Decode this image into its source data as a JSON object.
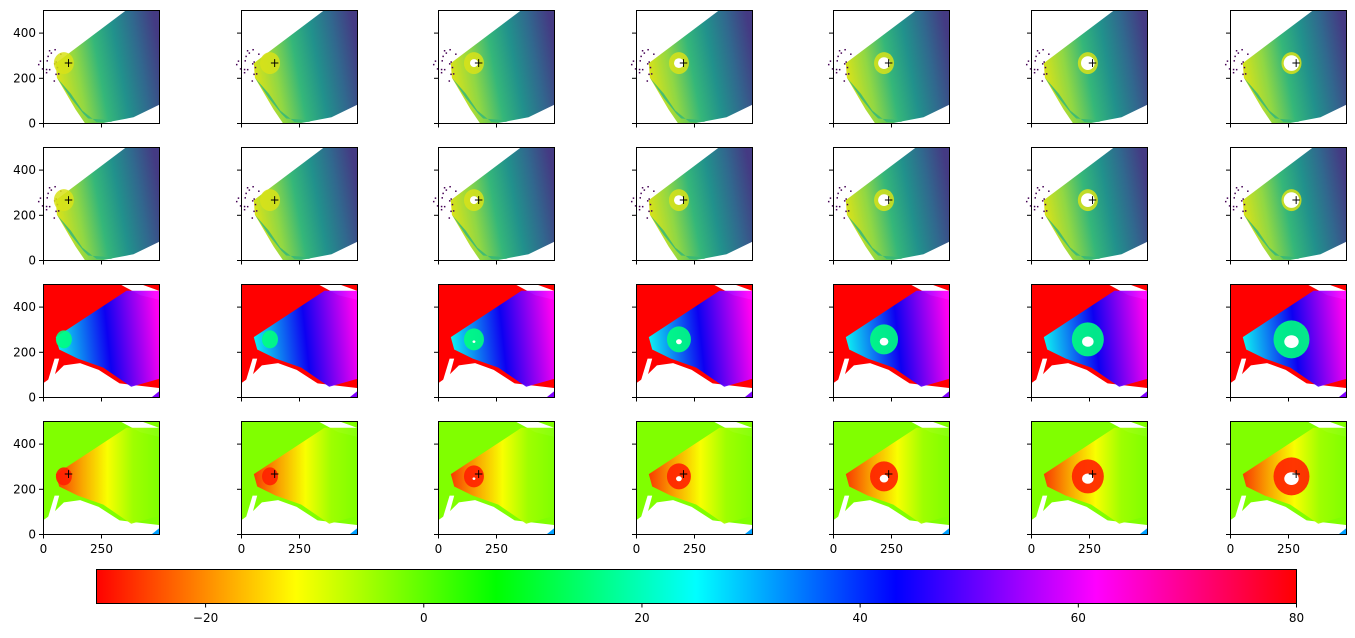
{
  "chart_data": {
    "type": "heatmap",
    "layout": {
      "rows": 4,
      "cols": 7,
      "sharey": true
    },
    "x_range": [
      0,
      500
    ],
    "y_range": [
      0,
      500
    ],
    "x_ticks": [
      0,
      250
    ],
    "y_ticks": [
      0,
      200,
      400
    ],
    "marker_symbol": "+",
    "marker_x": [
      110,
      145,
      175,
      205,
      240,
      265,
      285
    ],
    "marker_y": 265,
    "marker_rows": [
      0,
      1,
      3
    ],
    "hole_radius": [
      0,
      0,
      8,
      16,
      24,
      32,
      40
    ],
    "row_colormaps": [
      "viridis",
      "viridis",
      "hsv",
      "hsv"
    ],
    "colorbar": {
      "colormap": "hsv",
      "range": [
        -30,
        80
      ],
      "ticks": [
        -20,
        0,
        20,
        40,
        60,
        80
      ],
      "tick_labels": [
        "−20",
        "0",
        "20",
        "40",
        "60",
        "80"
      ]
    }
  }
}
